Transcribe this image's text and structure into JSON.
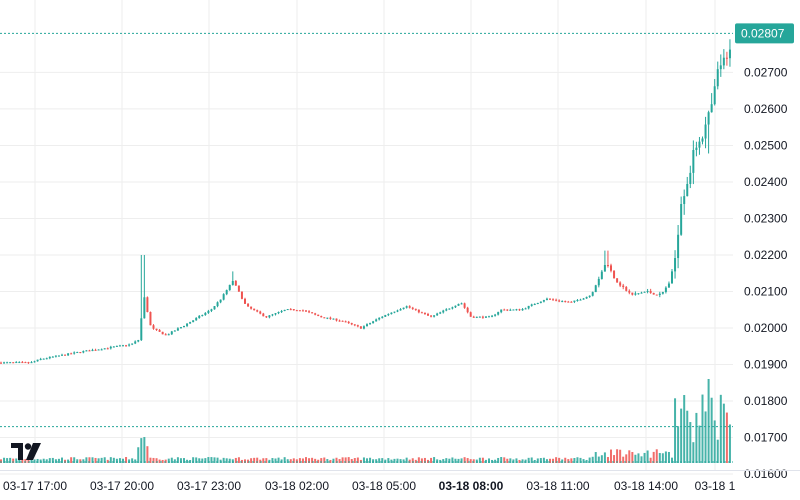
{
  "app": {
    "logo_icon": "tradingview-logo-icon"
  },
  "colors": {
    "up": "#26a69a",
    "down": "#ef5350",
    "grid": "#eeeeee",
    "axis_text": "#131722",
    "price_tag_bg": "#26a69a",
    "price_tag_text": "#ffffff",
    "price_line": "#26a69a"
  },
  "chart_data": {
    "type": "candlestick",
    "price_axis": {
      "range": [
        0.0157,
        0.0286
      ],
      "ticks": [
        "0.01600",
        "0.01700",
        "0.01800",
        "0.01900",
        "0.02000",
        "0.02100",
        "0.02200",
        "0.02300",
        "0.02400",
        "0.02500",
        "0.02600",
        "0.02700"
      ],
      "tick_values": [
        0.016,
        0.017,
        0.018,
        0.019,
        0.02,
        0.021,
        0.022,
        0.023,
        0.024,
        0.025,
        0.026,
        0.027
      ]
    },
    "time_axis": {
      "ticks": [
        "03-17 17:00",
        "03-17 20:00",
        "03-17 23:00",
        "03-18 02:00",
        "03-18 05:00",
        "03-18 08:00",
        "03-18 11:00",
        "03-18 14:00",
        "03-18 1"
      ],
      "bold_tick": "03-18 08:00"
    },
    "last_price": {
      "label": "0.02807",
      "value": 0.02807
    },
    "volume_line_level": 0.0173,
    "grid": true,
    "close_anchors": [
      [
        0,
        0.01905
      ],
      [
        30,
        0.01905
      ],
      [
        40,
        0.01915
      ],
      [
        80,
        0.01935
      ],
      [
        130,
        0.01955
      ],
      [
        139,
        0.0197
      ],
      [
        142,
        0.021
      ],
      [
        150,
        0.02
      ],
      [
        165,
        0.0198
      ],
      [
        185,
        0.0201
      ],
      [
        210,
        0.0205
      ],
      [
        220,
        0.0208
      ],
      [
        232,
        0.0213
      ],
      [
        245,
        0.0206
      ],
      [
        265,
        0.0203
      ],
      [
        285,
        0.0205
      ],
      [
        300,
        0.0205
      ],
      [
        320,
        0.0203
      ],
      [
        340,
        0.0202
      ],
      [
        360,
        0.02
      ],
      [
        380,
        0.0203
      ],
      [
        405,
        0.0206
      ],
      [
        430,
        0.0203
      ],
      [
        445,
        0.0205
      ],
      [
        460,
        0.0207
      ],
      [
        470,
        0.0203
      ],
      [
        490,
        0.0203
      ],
      [
        500,
        0.0205
      ],
      [
        520,
        0.0205
      ],
      [
        545,
        0.0208
      ],
      [
        570,
        0.0207
      ],
      [
        590,
        0.0209
      ],
      [
        605,
        0.0218
      ],
      [
        615,
        0.0213
      ],
      [
        630,
        0.0209
      ],
      [
        645,
        0.021
      ],
      [
        660,
        0.0209
      ],
      [
        672,
        0.0214
      ],
      [
        680,
        0.0235
      ],
      [
        688,
        0.0242
      ],
      [
        696,
        0.0251
      ],
      [
        705,
        0.0255
      ],
      [
        712,
        0.0262
      ],
      [
        718,
        0.0272
      ],
      [
        726,
        0.0273
      ],
      [
        731,
        0.02807
      ]
    ]
  }
}
